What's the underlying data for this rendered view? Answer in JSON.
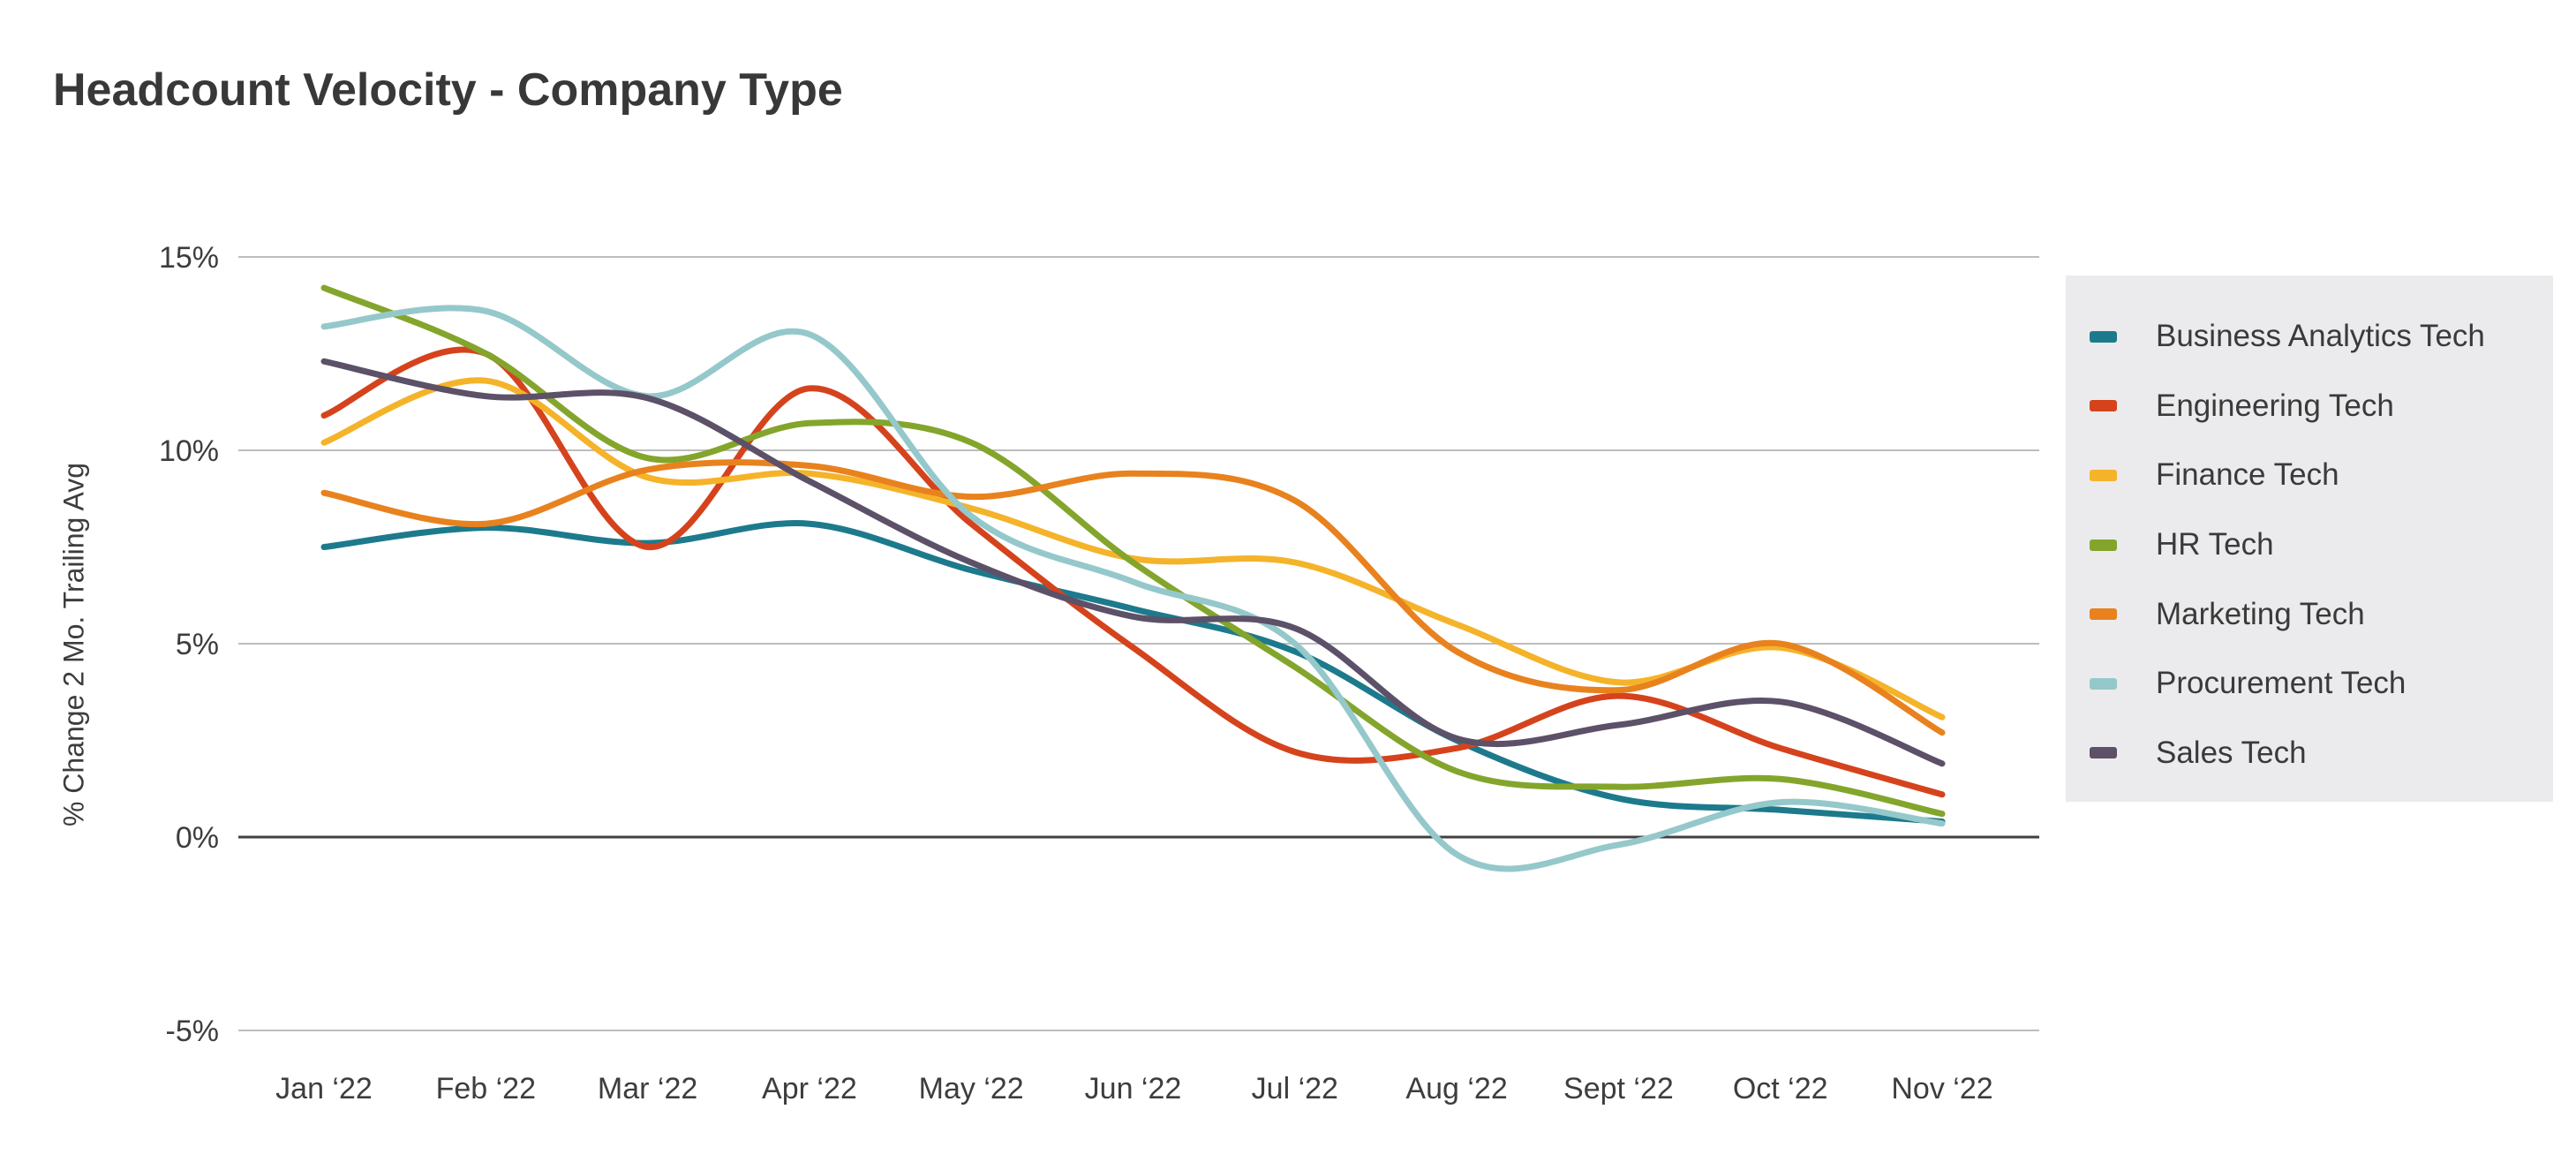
{
  "title": "Headcount Velocity - Company Type",
  "chart_data": {
    "type": "line",
    "title": "Headcount Velocity - Company Type",
    "xlabel": "",
    "ylabel": "% Change 2 Mo. Trailing Avg",
    "ylim": [
      -5,
      15
    ],
    "grid": "horizontal-only",
    "legend_position": "right",
    "line_style": "smooth-spline",
    "background_color": "#ffffff",
    "legend_background_color": "#ebebed",
    "gridline_color": "#bdbdbd",
    "zero_line_color": "#404040",
    "y_ticks": [
      {
        "value": 15,
        "label": "15%"
      },
      {
        "value": 10,
        "label": "10%"
      },
      {
        "value": 5,
        "label": "5%"
      },
      {
        "value": 0,
        "label": "0%"
      },
      {
        "value": -5,
        "label": "-5%"
      }
    ],
    "categories": [
      "Jan ‘22",
      "Feb ‘22",
      "Mar ‘22",
      "Apr ‘22",
      "May ‘22",
      "Jun ‘22",
      "Jul ‘22",
      "Aug ‘22",
      "Sept ‘22",
      "Oct ‘22",
      "Nov ‘22"
    ],
    "series": [
      {
        "name": "Business Analytics Tech",
        "color": "#1d7a8c",
        "values": [
          7.5,
          8.0,
          7.6,
          8.1,
          6.9,
          5.9,
          4.8,
          2.5,
          1.0,
          0.7,
          0.4
        ]
      },
      {
        "name": "Engineering Tech",
        "color": "#d5431d",
        "values": [
          10.9,
          12.5,
          7.5,
          11.6,
          8.1,
          4.9,
          2.2,
          2.3,
          3.65,
          2.3,
          1.1
        ]
      },
      {
        "name": "Finance Tech",
        "color": "#f5b32a",
        "values": [
          10.2,
          11.8,
          9.3,
          9.4,
          8.5,
          7.2,
          7.1,
          5.5,
          4.0,
          4.9,
          3.1
        ]
      },
      {
        "name": "HR Tech",
        "color": "#84a52c",
        "values": [
          14.2,
          12.5,
          9.8,
          10.7,
          10.2,
          7.1,
          4.4,
          1.7,
          1.3,
          1.5,
          0.6
        ]
      },
      {
        "name": "Marketing Tech",
        "color": "#e8821e",
        "values": [
          8.9,
          8.1,
          9.5,
          9.6,
          8.8,
          9.4,
          8.7,
          4.8,
          3.8,
          5.0,
          2.7
        ]
      },
      {
        "name": "Procurement Tech",
        "color": "#95c8cb",
        "values": [
          13.2,
          13.6,
          11.4,
          13.0,
          8.3,
          6.6,
          5.0,
          -0.45,
          -0.2,
          0.9,
          0.35
        ]
      },
      {
        "name": "Sales Tech",
        "color": "#5c5168",
        "values": [
          12.3,
          11.4,
          11.35,
          9.2,
          7.1,
          5.7,
          5.4,
          2.55,
          2.9,
          3.5,
          1.9
        ]
      }
    ]
  }
}
